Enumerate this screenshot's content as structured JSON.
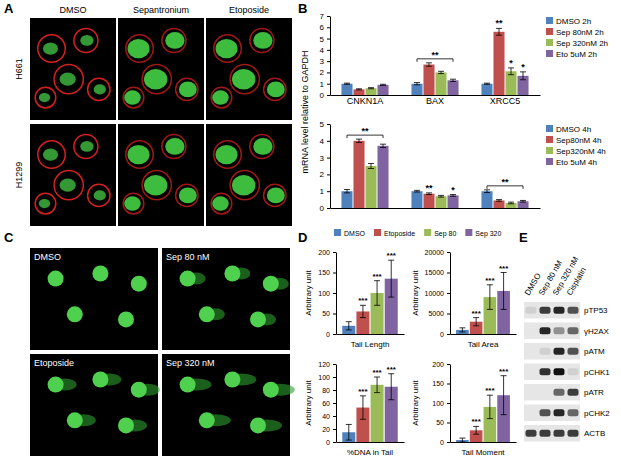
{
  "chart_data": [
    {
      "type": "bar",
      "ylabel": "mRNA level relative to GAPDH",
      "categories": [
        "CNKN1A",
        "BAX",
        "XRCC5"
      ],
      "series": [
        {
          "name": "DMSO 2h",
          "color": "#4f81bd",
          "values": [
            1,
            1,
            1
          ],
          "errors": [
            0.05,
            0.1,
            0.05
          ]
        },
        {
          "name": "Sep 80nM 2h",
          "color": "#c0504d",
          "values": [
            0.5,
            2.7,
            5.6
          ],
          "errors": [
            0.05,
            0.15,
            0.3
          ]
        },
        {
          "name": "Sep 320nM 2h",
          "color": "#9bbb59",
          "values": [
            0.6,
            2.0,
            2.1
          ],
          "errors": [
            0.05,
            0.1,
            0.3
          ]
        },
        {
          "name": "Eto 5uM 2h",
          "color": "#8064a2",
          "values": [
            0.9,
            1.3,
            1.7
          ],
          "errors": [
            0.05,
            0.1,
            0.35
          ]
        }
      ],
      "ylim": [
        0,
        7
      ],
      "yticks": [
        0,
        1,
        2,
        3,
        4,
        5,
        6,
        7
      ],
      "legend": "right",
      "annotations": [
        {
          "text": "**",
          "category": 1,
          "series": [
            0,
            3
          ]
        },
        {
          "text": "**",
          "category": 2,
          "series": [
            1
          ]
        },
        {
          "text": "*",
          "category": 2,
          "series": [
            2
          ]
        },
        {
          "text": "*",
          "category": 2,
          "series": [
            3
          ]
        }
      ]
    },
    {
      "type": "bar",
      "categories": [
        null,
        null,
        null
      ],
      "series": [
        {
          "name": "DMSO 4h",
          "color": "#4f81bd",
          "values": [
            1,
            1,
            1
          ],
          "errors": [
            0.1,
            0.05,
            0.08
          ]
        },
        {
          "name": "Sep80nM 4h",
          "color": "#c0504d",
          "values": [
            4,
            0.85,
            0.45
          ],
          "errors": [
            0.1,
            0.05,
            0.05
          ]
        },
        {
          "name": "Sep320nM 4h",
          "color": "#9bbb59",
          "values": [
            2.5,
            0.7,
            0.3
          ],
          "errors": [
            0.15,
            0.05,
            0.05
          ]
        },
        {
          "name": "Eto 5uM 4h",
          "color": "#8064a2",
          "values": [
            3.7,
            0.75,
            0.4
          ],
          "errors": [
            0.1,
            0.05,
            0.05
          ]
        }
      ],
      "ylim": [
        0,
        5
      ],
      "yticks": [
        0,
        1,
        2,
        3,
        4,
        5
      ],
      "legend": "right",
      "annotations": [
        {
          "text": "**",
          "category": 0,
          "series": [
            0,
            3
          ]
        },
        {
          "text": "**",
          "category": 1,
          "series": [
            1
          ]
        },
        {
          "text": "*",
          "category": 1,
          "series": [
            3
          ]
        },
        {
          "text": "**",
          "category": 2,
          "series": [
            0,
            3
          ]
        }
      ]
    },
    {
      "type": "bar",
      "xlabel": "Tail Length",
      "ylabel": "Arbitrary unit",
      "categories": [
        null
      ],
      "series": [
        {
          "name": "DMSO",
          "color": "#4f81bd",
          "values": [
            20
          ],
          "errors": [
            10
          ]
        },
        {
          "name": "Etoposide",
          "color": "#c0504d",
          "values": [
            55
          ],
          "errors": [
            15
          ]
        },
        {
          "name": "Sep 80",
          "color": "#9bbb59",
          "values": [
            100
          ],
          "errors": [
            30
          ]
        },
        {
          "name": "Sep 320",
          "color": "#8064a2",
          "values": [
            135
          ],
          "errors": [
            45
          ]
        }
      ],
      "ylim": [
        0,
        200
      ],
      "yticks": [
        0,
        50,
        100,
        150,
        200
      ],
      "legend": "top",
      "annotations": [
        {
          "text": "***",
          "category": 0,
          "series": [
            1
          ]
        },
        {
          "text": "***",
          "category": 0,
          "series": [
            2
          ]
        },
        {
          "text": "***",
          "category": 0,
          "series": [
            3
          ]
        }
      ]
    },
    {
      "type": "bar",
      "xlabel": "Tail Area",
      "ylabel": "Arbitrary unit",
      "categories": [
        null
      ],
      "series": [
        {
          "color": "#4f81bd",
          "values": [
            1000
          ],
          "errors": [
            500
          ]
        },
        {
          "color": "#c0504d",
          "values": [
            3000
          ],
          "errors": [
            1000
          ]
        },
        {
          "color": "#9bbb59",
          "values": [
            9000
          ],
          "errors": [
            3000
          ]
        },
        {
          "color": "#8064a2",
          "values": [
            10500
          ],
          "errors": [
            4500
          ]
        }
      ],
      "ylim": [
        0,
        20000
      ],
      "yticks": [
        0,
        5000,
        10000,
        15000,
        20000
      ],
      "annotations": [
        {
          "text": "***",
          "category": 0,
          "series": [
            1
          ]
        },
        {
          "text": "***",
          "category": 0,
          "series": [
            2
          ]
        },
        {
          "text": "***",
          "category": 0,
          "series": [
            3
          ]
        }
      ]
    },
    {
      "type": "bar",
      "xlabel": "%DNA in Tail",
      "ylabel": "Arbitrary unit",
      "categories": [
        null
      ],
      "series": [
        {
          "color": "#4f81bd",
          "values": [
            15
          ],
          "errors": [
            12
          ]
        },
        {
          "color": "#c0504d",
          "values": [
            53
          ],
          "errors": [
            18
          ]
        },
        {
          "color": "#9bbb59",
          "values": [
            88
          ],
          "errors": [
            12
          ]
        },
        {
          "color": "#8064a2",
          "values": [
            85
          ],
          "errors": [
            20
          ]
        }
      ],
      "ylim": [
        0,
        120
      ],
      "yticks": [
        0,
        20,
        40,
        60,
        80,
        100,
        120
      ],
      "annotations": [
        {
          "text": "***",
          "category": 0,
          "series": [
            1
          ]
        },
        {
          "text": "***",
          "category": 0,
          "series": [
            2
          ]
        },
        {
          "text": "***",
          "category": 0,
          "series": [
            3
          ]
        }
      ]
    },
    {
      "type": "bar",
      "xlabel": "Tail Moment",
      "ylabel": "Arbitrary unit",
      "categories": [
        null
      ],
      "series": [
        {
          "color": "#4f81bd",
          "values": [
            5
          ],
          "errors": [
            5
          ]
        },
        {
          "color": "#c0504d",
          "values": [
            30
          ],
          "errors": [
            10
          ]
        },
        {
          "color": "#9bbb59",
          "values": [
            90
          ],
          "errors": [
            30
          ]
        },
        {
          "color": "#8064a2",
          "values": [
            120
          ],
          "errors": [
            50
          ]
        }
      ],
      "ylim": [
        0,
        200
      ],
      "yticks": [
        0,
        50,
        100,
        150,
        200
      ],
      "annotations": [
        {
          "text": "***",
          "category": 0,
          "series": [
            1
          ]
        },
        {
          "text": "***",
          "category": 0,
          "series": [
            2
          ]
        },
        {
          "text": "***",
          "category": 0,
          "series": [
            3
          ]
        }
      ]
    }
  ],
  "panels": {
    "labels": [
      "A",
      "B",
      "C",
      "D",
      "E"
    ],
    "A": {
      "columns": [
        "DMSO",
        "Sepantronium",
        "Etoposide"
      ],
      "rows": [
        "H661",
        "H1299"
      ]
    },
    "C": {
      "images": [
        "DMSO",
        "Sep 80 nM",
        "Etoposide",
        "Sep 320 nM"
      ]
    },
    "E": {
      "columns": [
        "DMSO",
        "Sep 80 nM",
        "Sep 320 nM",
        "Cisplatin"
      ],
      "rows": [
        {
          "label": "pTP53",
          "bands": [
            0.1,
            0.8,
            0.9,
            0.7
          ]
        },
        {
          "label": "γH2AX",
          "bands": [
            0,
            0.9,
            0.4,
            0.6
          ]
        },
        {
          "label": "pATM",
          "bands": [
            0,
            0.1,
            0.9,
            0.7
          ]
        },
        {
          "label": "pCHK1",
          "bands": [
            0,
            0.85,
            1,
            0.1
          ]
        },
        {
          "label": "pATR",
          "bands": [
            0,
            0,
            0.6,
            0.8
          ]
        },
        {
          "label": "pCHK2",
          "bands": [
            0,
            0.7,
            0.9,
            0.6
          ]
        },
        {
          "label": "ACTB",
          "bands": [
            0.8,
            0.8,
            0.8,
            0.8
          ]
        }
      ]
    }
  }
}
